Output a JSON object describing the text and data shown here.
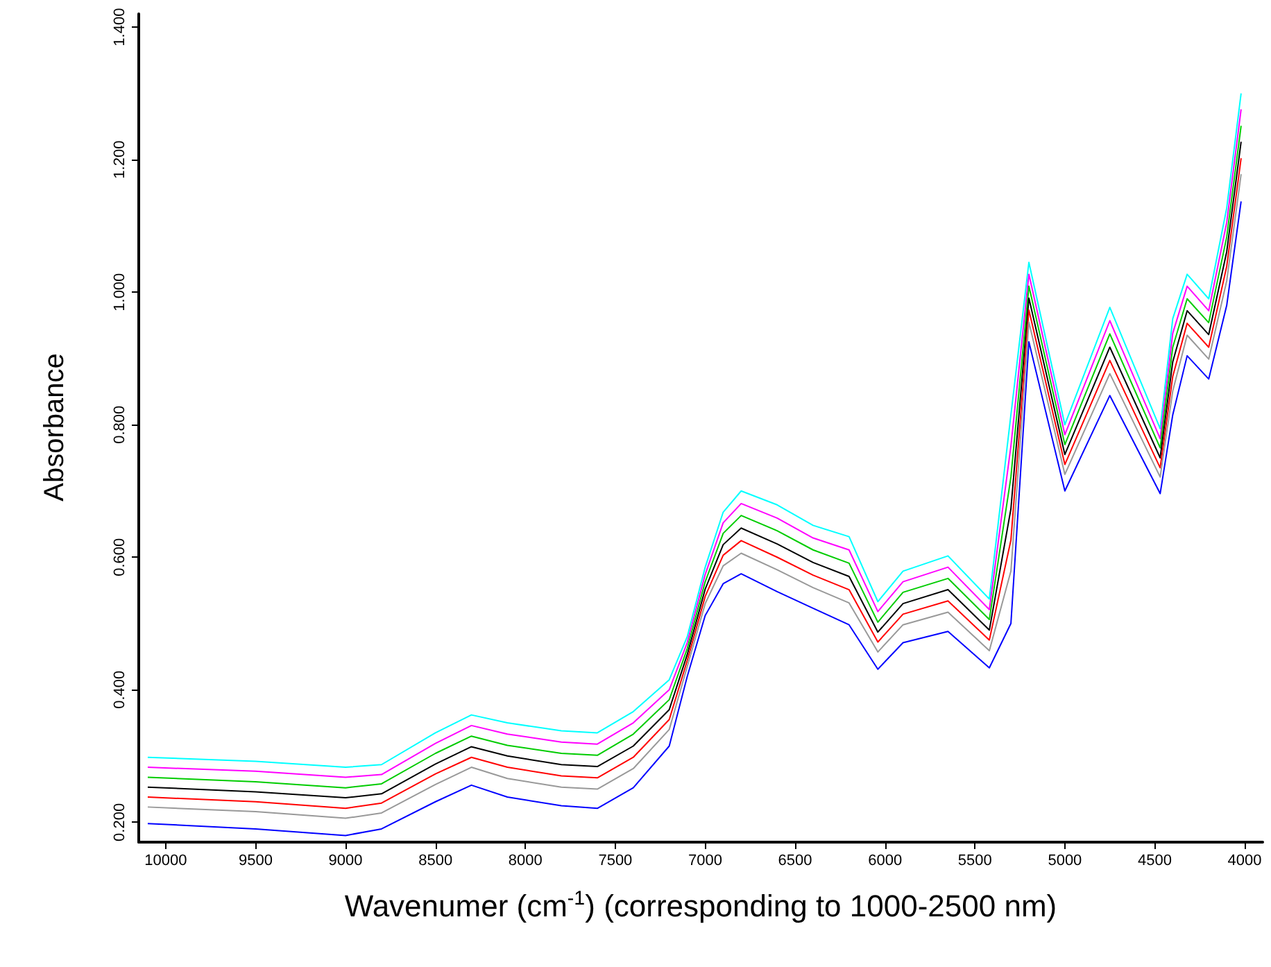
{
  "chart_data": {
    "type": "line",
    "xlabel": "Wavenumer (cm$^{-1}$) (corresponding to 1000-2500 nm)",
    "ylabel": "Absorbance",
    "x": [
      10100,
      9500,
      9000,
      8800,
      8500,
      8300,
      8100,
      7800,
      7600,
      7400,
      7200,
      7100,
      7000,
      6900,
      6800,
      6600,
      6400,
      6200,
      6040,
      5900,
      5650,
      5420,
      5300,
      5200,
      5000,
      4750,
      4470,
      4400,
      4320,
      4200,
      4100,
      4020
    ],
    "xlim": [
      10150,
      3900
    ],
    "xticks": [
      10000,
      9500,
      9000,
      8500,
      8000,
      7500,
      7000,
      6500,
      6000,
      5500,
      5000,
      4500,
      4000
    ],
    "ylim": [
      0.17,
      1.42
    ],
    "yticks": [
      {
        "value": 0.2,
        "label": "0.200"
      },
      {
        "value": 0.4,
        "label": "0.400"
      },
      {
        "value": 0.6,
        "label": "0.600"
      },
      {
        "value": 0.8,
        "label": "0.800"
      },
      {
        "value": 1.0,
        "label": "1.000"
      },
      {
        "value": 1.2,
        "label": "1.200"
      },
      {
        "value": 1.4,
        "label": "1.400"
      }
    ],
    "grid": false,
    "marker": "none",
    "line_style": "solid",
    "series": [
      {
        "color": "#00ffff",
        "values": [
          0.298,
          0.292,
          0.283,
          0.287,
          0.335,
          0.362,
          0.35,
          0.338,
          0.335,
          0.367,
          0.415,
          0.48,
          0.585,
          0.668,
          0.7,
          0.679,
          0.648,
          0.631,
          0.533,
          0.579,
          0.602,
          0.537,
          0.815,
          1.045,
          0.8,
          0.977,
          0.794,
          0.96,
          1.027,
          0.99,
          1.127,
          1.3
        ]
      },
      {
        "color": "#ff00ff",
        "values": [
          0.283,
          0.277,
          0.268,
          0.272,
          0.319,
          0.346,
          0.333,
          0.321,
          0.318,
          0.35,
          0.4,
          0.471,
          0.574,
          0.652,
          0.681,
          0.659,
          0.629,
          0.611,
          0.518,
          0.563,
          0.585,
          0.521,
          0.768,
          1.027,
          0.785,
          0.957,
          0.779,
          0.938,
          1.009,
          0.972,
          1.105,
          1.276
        ]
      },
      {
        "color": "#00cc00",
        "values": [
          0.268,
          0.261,
          0.252,
          0.258,
          0.304,
          0.33,
          0.316,
          0.304,
          0.301,
          0.333,
          0.385,
          0.462,
          0.563,
          0.636,
          0.663,
          0.64,
          0.611,
          0.591,
          0.502,
          0.547,
          0.568,
          0.506,
          0.721,
          1.009,
          0.77,
          0.937,
          0.765,
          0.917,
          0.99,
          0.954,
          1.083,
          1.251
        ]
      },
      {
        "color": "#000000",
        "values": [
          0.253,
          0.246,
          0.237,
          0.243,
          0.288,
          0.314,
          0.3,
          0.287,
          0.284,
          0.315,
          0.37,
          0.453,
          0.552,
          0.619,
          0.644,
          0.62,
          0.592,
          0.571,
          0.487,
          0.53,
          0.551,
          0.49,
          0.673,
          0.991,
          0.755,
          0.917,
          0.75,
          0.895,
          0.972,
          0.936,
          1.061,
          1.227
        ]
      },
      {
        "color": "#ff0000",
        "values": [
          0.238,
          0.231,
          0.221,
          0.229,
          0.273,
          0.298,
          0.283,
          0.27,
          0.267,
          0.298,
          0.355,
          0.444,
          0.541,
          0.603,
          0.625,
          0.6,
          0.573,
          0.551,
          0.472,
          0.514,
          0.534,
          0.475,
          0.626,
          0.973,
          0.74,
          0.897,
          0.735,
          0.873,
          0.953,
          0.917,
          1.039,
          1.202
        ]
      },
      {
        "color": "#999999",
        "values": [
          0.223,
          0.216,
          0.206,
          0.214,
          0.257,
          0.283,
          0.266,
          0.253,
          0.25,
          0.281,
          0.34,
          0.435,
          0.53,
          0.587,
          0.606,
          0.581,
          0.554,
          0.531,
          0.457,
          0.498,
          0.517,
          0.459,
          0.579,
          0.955,
          0.725,
          0.877,
          0.721,
          0.851,
          0.935,
          0.899,
          1.017,
          1.178
        ]
      },
      {
        "color": "#0000ff",
        "values": [
          0.198,
          0.19,
          0.18,
          0.19,
          0.231,
          0.256,
          0.238,
          0.225,
          0.221,
          0.252,
          0.315,
          0.42,
          0.512,
          0.56,
          0.575,
          0.548,
          0.523,
          0.498,
          0.431,
          0.471,
          0.488,
          0.433,
          0.5,
          0.925,
          0.7,
          0.844,
          0.696,
          0.815,
          0.904,
          0.869,
          0.98,
          1.137
        ]
      }
    ]
  }
}
